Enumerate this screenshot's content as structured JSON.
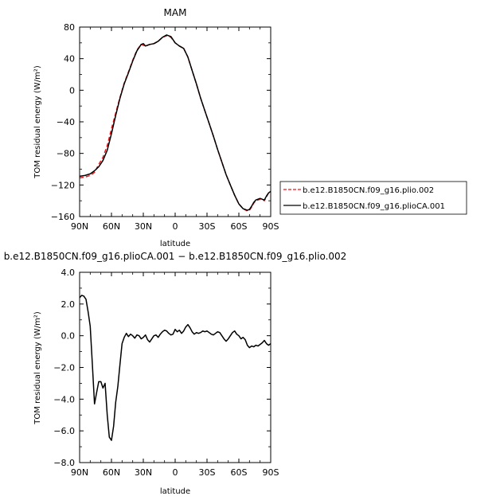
{
  "chart_data": [
    {
      "type": "line",
      "title": "MAM",
      "xlabel": "latitude",
      "ylabel": "TOM residual energy  (W/m²)",
      "x_ticks": [
        90,
        60,
        30,
        0,
        -30,
        -60,
        -90
      ],
      "x_tick_labels": [
        "90N",
        "60N",
        "30N",
        "0",
        "30S",
        "60S",
        "90S"
      ],
      "xlim": [
        90,
        -90
      ],
      "y_ticks": [
        80,
        40,
        0,
        -40,
        -80,
        -120,
        -160
      ],
      "y_tick_labels": [
        "80",
        "40",
        "0",
        "−40",
        "−80",
        "−120",
        "−160"
      ],
      "ylim": [
        -160,
        80
      ],
      "grid": false,
      "legend_position": "right",
      "series": [
        {
          "name": "b.e12.B1850CN.f09_g16.plio.002",
          "color": "#e8141c",
          "style": "dashed",
          "x": [
            90,
            85,
            80,
            76,
            72,
            68,
            64,
            60,
            56,
            52,
            48,
            44,
            40,
            36,
            32,
            30,
            28,
            24,
            20,
            16,
            12,
            8,
            4,
            0,
            -4,
            -8,
            -12,
            -16,
            -20,
            -24,
            -28,
            -32,
            -36,
            -40,
            -44,
            -48,
            -52,
            -56,
            -60,
            -64,
            -68,
            -70,
            -72,
            -74,
            -76,
            -78,
            -80,
            -82,
            -84,
            -86,
            -88,
            -90
          ],
          "values": [
            -111,
            -110,
            -108,
            -104,
            -94,
            -85,
            -70,
            -49,
            -29,
            -9,
            9,
            23,
            38,
            51,
            58,
            57,
            56,
            58,
            59,
            62,
            67,
            69,
            67,
            60,
            56,
            53,
            42,
            25,
            8,
            -10,
            -26,
            -42,
            -58,
            -75,
            -91,
            -107,
            -120,
            -133,
            -144,
            -150,
            -153,
            -152,
            -148,
            -143,
            -140,
            -139,
            -138,
            -138,
            -140,
            -135,
            -130,
            -128
          ]
        },
        {
          "name": "b.e12.B1850CN.f09_g16.plioCA.001",
          "color": "#000000",
          "style": "solid",
          "x": [
            90,
            85,
            80,
            76,
            72,
            68,
            64,
            60,
            56,
            52,
            48,
            44,
            40,
            36,
            32,
            30,
            28,
            24,
            20,
            16,
            12,
            8,
            4,
            0,
            -4,
            -8,
            -12,
            -16,
            -20,
            -24,
            -28,
            -32,
            -36,
            -40,
            -44,
            -48,
            -52,
            -56,
            -60,
            -64,
            -68,
            -70,
            -72,
            -74,
            -76,
            -78,
            -80,
            -82,
            -84,
            -86,
            -88,
            -90
          ],
          "values": [
            -109,
            -108,
            -106,
            -102,
            -97,
            -89,
            -76,
            -55,
            -32,
            -10,
            8,
            22,
            37,
            50,
            58,
            59,
            56,
            58,
            59,
            62,
            67,
            70,
            68,
            60,
            56,
            53,
            42,
            25,
            8,
            -10,
            -26,
            -42,
            -58,
            -75,
            -91,
            -107,
            -120,
            -133,
            -144,
            -150,
            -152,
            -151,
            -147,
            -142,
            -139,
            -138,
            -137,
            -138,
            -139,
            -134,
            -130,
            -128
          ]
        }
      ]
    },
    {
      "type": "line",
      "title": "b.e12.B1850CN.f09_g16.plioCA.001  −  b.e12.B1850CN.f09_g16.plio.002",
      "xlabel": "latitude",
      "ylabel": "TOM residual energy  (W/m²)",
      "x_ticks": [
        90,
        60,
        30,
        0,
        -30,
        -60,
        -90
      ],
      "x_tick_labels": [
        "90N",
        "60N",
        "30N",
        "0",
        "30S",
        "60S",
        "90S"
      ],
      "xlim": [
        90,
        -90
      ],
      "y_ticks": [
        4,
        2,
        0,
        -2,
        -4,
        -6,
        -8
      ],
      "y_tick_labels": [
        "4.0",
        "2.0",
        "0.0",
        "−2.0",
        "−4.0",
        "−6.0",
        "−8.0"
      ],
      "ylim": [
        -8,
        4
      ],
      "grid": false,
      "series": [
        {
          "color": "#000000",
          "style": "solid",
          "x": [
            90,
            88,
            86,
            84,
            82,
            80,
            78,
            76,
            74,
            72,
            70,
            68,
            66,
            64,
            62,
            60,
            58,
            56,
            54,
            52,
            50,
            48,
            46,
            44,
            42,
            40,
            38,
            36,
            34,
            32,
            30,
            28,
            26,
            24,
            22,
            20,
            18,
            16,
            14,
            12,
            10,
            8,
            6,
            4,
            2,
            0,
            -2,
            -4,
            -6,
            -8,
            -10,
            -12,
            -14,
            -16,
            -18,
            -20,
            -22,
            -24,
            -26,
            -28,
            -30,
            -32,
            -34,
            -36,
            -38,
            -40,
            -42,
            -44,
            -46,
            -48,
            -50,
            -52,
            -54,
            -56,
            -58,
            -60,
            -62,
            -64,
            -66,
            -68,
            -70,
            -72,
            -74,
            -76,
            -78,
            -80,
            -82,
            -84,
            -86,
            -88,
            -90
          ],
          "values": [
            2.4,
            2.55,
            2.5,
            2.3,
            1.5,
            0.6,
            -1.8,
            -4.3,
            -3.6,
            -2.9,
            -2.9,
            -3.3,
            -3.0,
            -5.0,
            -6.4,
            -6.6,
            -5.7,
            -4.2,
            -3.2,
            -1.8,
            -0.5,
            -0.1,
            0.15,
            -0.05,
            0.1,
            0.0,
            -0.15,
            0.05,
            0.0,
            -0.2,
            -0.1,
            0.05,
            -0.25,
            -0.4,
            -0.2,
            0.0,
            0.05,
            -0.1,
            0.1,
            0.25,
            0.35,
            0.3,
            0.15,
            0.05,
            0.1,
            0.4,
            0.25,
            0.35,
            0.15,
            0.3,
            0.55,
            0.7,
            0.5,
            0.25,
            0.1,
            0.2,
            0.15,
            0.2,
            0.3,
            0.25,
            0.3,
            0.2,
            0.1,
            0.05,
            0.15,
            0.25,
            0.2,
            0.0,
            -0.2,
            -0.35,
            -0.2,
            0.0,
            0.2,
            0.3,
            0.1,
            0.0,
            -0.2,
            -0.1,
            -0.25,
            -0.6,
            -0.75,
            -0.65,
            -0.7,
            -0.6,
            -0.65,
            -0.55,
            -0.45,
            -0.3,
            -0.5,
            -0.6,
            -0.5
          ]
        }
      ]
    }
  ]
}
